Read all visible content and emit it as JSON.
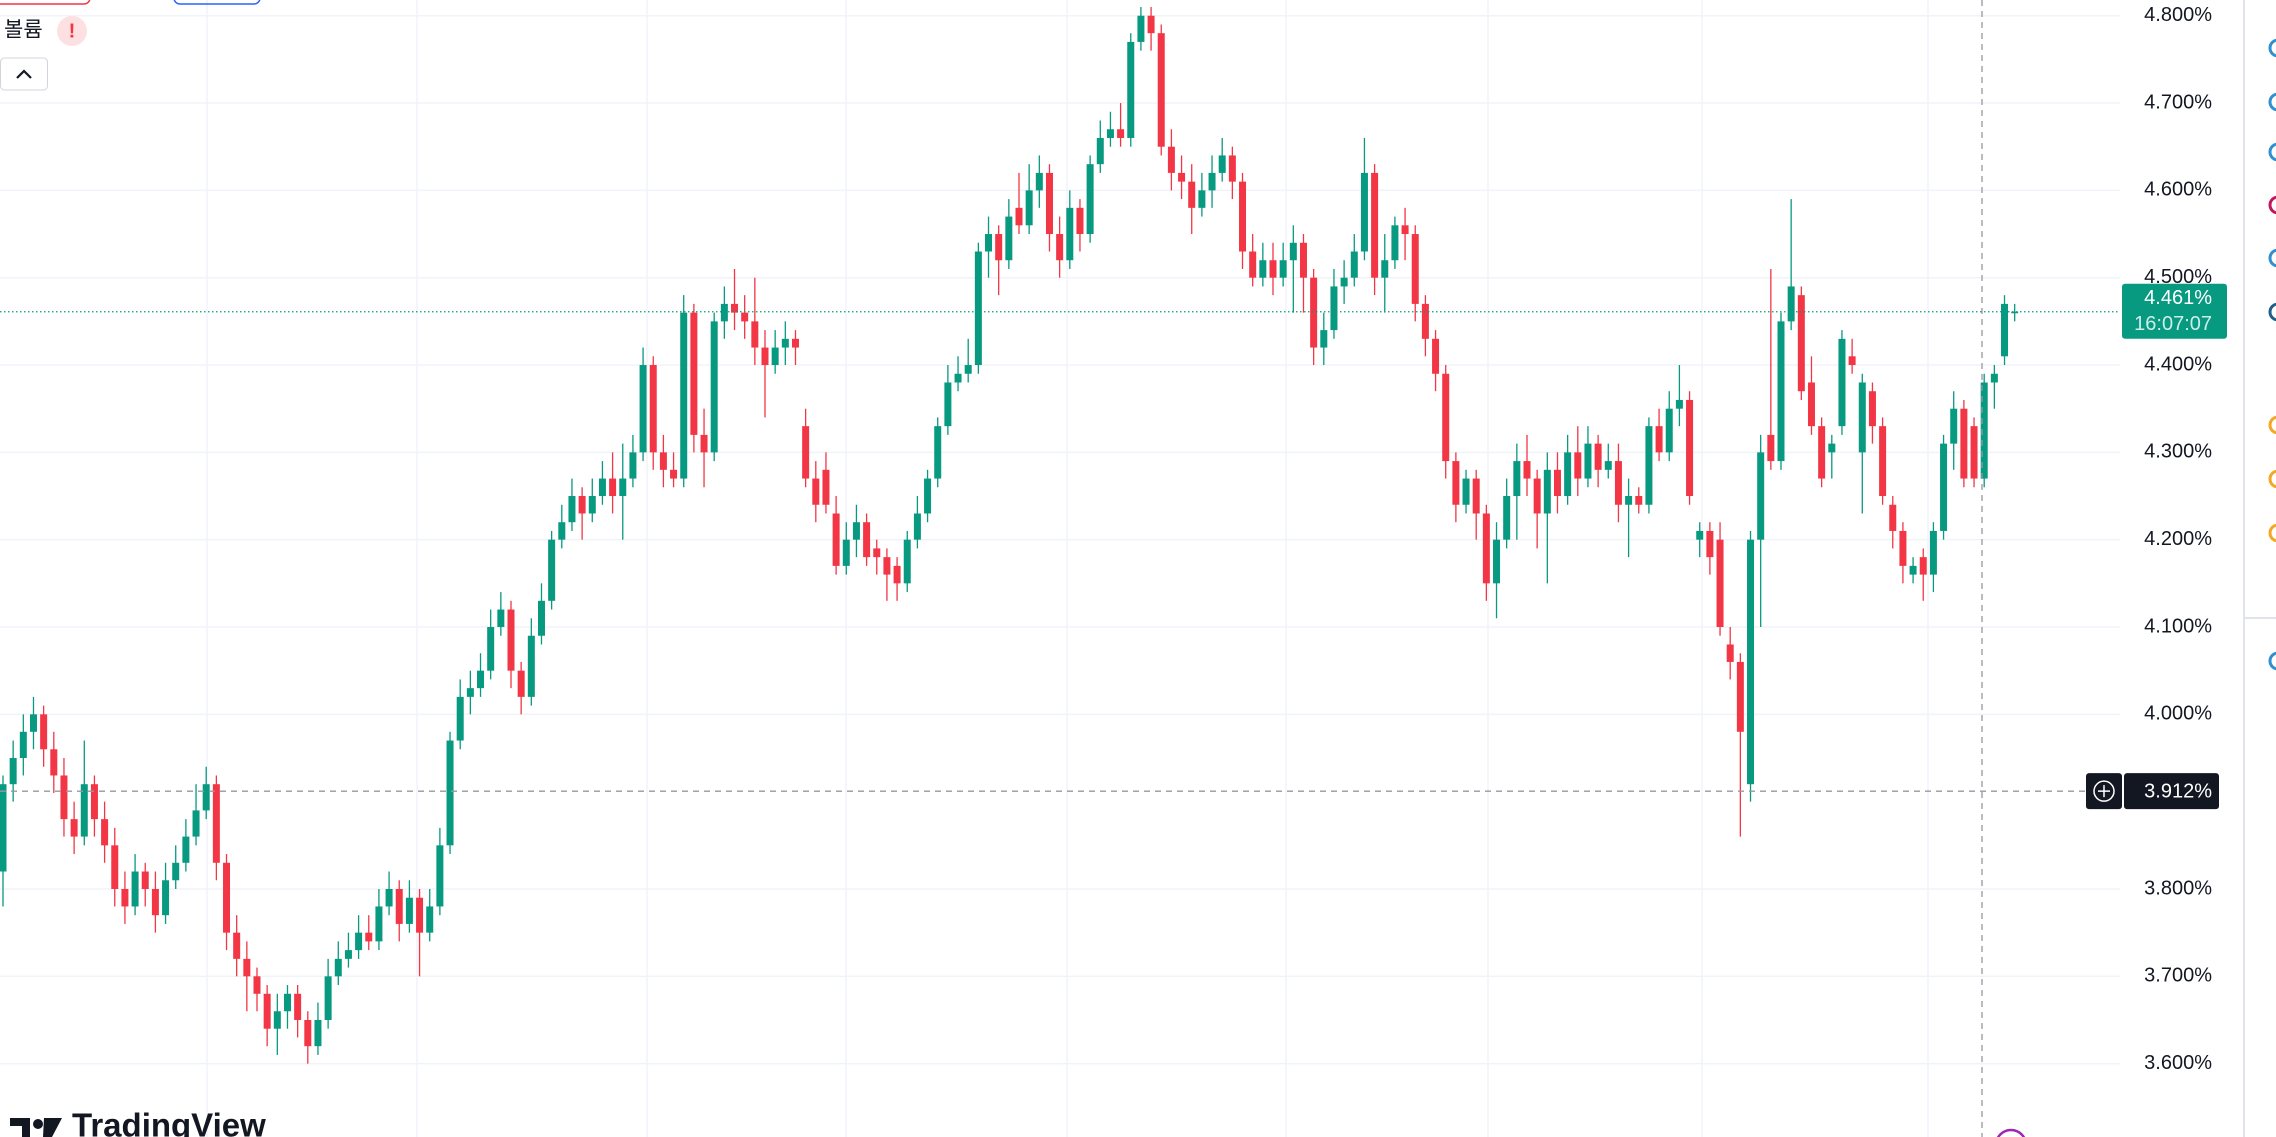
{
  "ui": {
    "volume_label": "볼륨",
    "brand": "TradingView"
  },
  "chart_data": {
    "type": "candlestick",
    "up_color": "#089981",
    "down_color": "#f23645",
    "grid": true,
    "ylim": [
      3.516,
      4.818
    ],
    "yticks": [
      {
        "value": 4.8,
        "label": "4.800%"
      },
      {
        "value": 4.7,
        "label": "4.700%"
      },
      {
        "value": 4.6,
        "label": "4.600%"
      },
      {
        "value": 4.5,
        "label": "4.500%"
      },
      {
        "value": 4.4,
        "label": "4.400%"
      },
      {
        "value": 4.3,
        "label": "4.300%"
      },
      {
        "value": 4.2,
        "label": "4.200%"
      },
      {
        "value": 4.1,
        "label": "4.100%"
      },
      {
        "value": 4.0,
        "label": "4.000%"
      },
      {
        "value": 3.8,
        "label": "3.800%"
      },
      {
        "value": 3.7,
        "label": "3.700%"
      },
      {
        "value": 3.6,
        "label": "3.600%"
      }
    ],
    "last_price": {
      "value": 4.461,
      "label": "4.461%"
    },
    "countdown": "16:07:07",
    "crosshair": {
      "value": 3.912,
      "label": "3.912%"
    },
    "candles": [
      [
        3.82,
        3.93,
        3.78,
        3.92
      ],
      [
        3.92,
        3.97,
        3.9,
        3.95
      ],
      [
        3.95,
        4.0,
        3.93,
        3.98
      ],
      [
        3.98,
        4.02,
        3.96,
        4.0
      ],
      [
        4.0,
        4.01,
        3.94,
        3.96
      ],
      [
        3.96,
        3.98,
        3.91,
        3.93
      ],
      [
        3.93,
        3.95,
        3.86,
        3.88
      ],
      [
        3.88,
        3.9,
        3.84,
        3.86
      ],
      [
        3.86,
        3.97,
        3.85,
        3.92
      ],
      [
        3.92,
        3.93,
        3.86,
        3.88
      ],
      [
        3.88,
        3.9,
        3.83,
        3.85
      ],
      [
        3.85,
        3.87,
        3.78,
        3.8
      ],
      [
        3.8,
        3.82,
        3.76,
        3.78
      ],
      [
        3.78,
        3.84,
        3.77,
        3.82
      ],
      [
        3.82,
        3.83,
        3.78,
        3.8
      ],
      [
        3.8,
        3.82,
        3.75,
        3.77
      ],
      [
        3.77,
        3.83,
        3.76,
        3.81
      ],
      [
        3.81,
        3.85,
        3.8,
        3.83
      ],
      [
        3.83,
        3.88,
        3.82,
        3.86
      ],
      [
        3.86,
        3.92,
        3.85,
        3.89
      ],
      [
        3.89,
        3.94,
        3.88,
        3.92
      ],
      [
        3.92,
        3.93,
        3.81,
        3.83
      ],
      [
        3.83,
        3.84,
        3.73,
        3.75
      ],
      [
        3.75,
        3.77,
        3.7,
        3.72
      ],
      [
        3.72,
        3.74,
        3.66,
        3.7
      ],
      [
        3.7,
        3.71,
        3.66,
        3.68
      ],
      [
        3.68,
        3.69,
        3.62,
        3.64
      ],
      [
        3.64,
        3.68,
        3.61,
        3.66
      ],
      [
        3.66,
        3.69,
        3.64,
        3.68
      ],
      [
        3.68,
        3.69,
        3.63,
        3.65
      ],
      [
        3.65,
        3.66,
        3.6,
        3.62
      ],
      [
        3.62,
        3.67,
        3.61,
        3.65
      ],
      [
        3.65,
        3.72,
        3.64,
        3.7
      ],
      [
        3.7,
        3.74,
        3.69,
        3.72
      ],
      [
        3.72,
        3.75,
        3.71,
        3.73
      ],
      [
        3.73,
        3.77,
        3.72,
        3.75
      ],
      [
        3.75,
        3.77,
        3.73,
        3.74
      ],
      [
        3.74,
        3.8,
        3.73,
        3.78
      ],
      [
        3.78,
        3.82,
        3.77,
        3.8
      ],
      [
        3.8,
        3.81,
        3.74,
        3.76
      ],
      [
        3.76,
        3.81,
        3.75,
        3.79
      ],
      [
        3.79,
        3.8,
        3.7,
        3.75
      ],
      [
        3.75,
        3.8,
        3.74,
        3.78
      ],
      [
        3.78,
        3.87,
        3.77,
        3.85
      ],
      [
        3.85,
        3.98,
        3.84,
        3.97
      ],
      [
        3.97,
        4.04,
        3.96,
        4.02
      ],
      [
        4.02,
        4.05,
        4.0,
        4.03
      ],
      [
        4.03,
        4.07,
        4.02,
        4.05
      ],
      [
        4.05,
        4.12,
        4.04,
        4.1
      ],
      [
        4.1,
        4.14,
        4.09,
        4.12
      ],
      [
        4.12,
        4.13,
        4.03,
        4.05
      ],
      [
        4.05,
        4.06,
        4.0,
        4.02
      ],
      [
        4.02,
        4.11,
        4.01,
        4.09
      ],
      [
        4.09,
        4.15,
        4.08,
        4.13
      ],
      [
        4.13,
        4.21,
        4.12,
        4.2
      ],
      [
        4.2,
        4.24,
        4.19,
        4.22
      ],
      [
        4.22,
        4.27,
        4.21,
        4.25
      ],
      [
        4.25,
        4.26,
        4.2,
        4.23
      ],
      [
        4.23,
        4.27,
        4.22,
        4.25
      ],
      [
        4.25,
        4.29,
        4.24,
        4.27
      ],
      [
        4.27,
        4.3,
        4.23,
        4.25
      ],
      [
        4.25,
        4.31,
        4.2,
        4.27
      ],
      [
        4.27,
        4.32,
        4.26,
        4.3
      ],
      [
        4.3,
        4.42,
        4.29,
        4.4
      ],
      [
        4.4,
        4.41,
        4.28,
        4.3
      ],
      [
        4.3,
        4.32,
        4.26,
        4.28
      ],
      [
        4.28,
        4.3,
        4.26,
        4.27
      ],
      [
        4.27,
        4.48,
        4.26,
        4.46
      ],
      [
        4.46,
        4.47,
        4.3,
        4.32
      ],
      [
        4.32,
        4.35,
        4.26,
        4.3
      ],
      [
        4.3,
        4.46,
        4.29,
        4.45
      ],
      [
        4.45,
        4.49,
        4.43,
        4.47
      ],
      [
        4.47,
        4.51,
        4.44,
        4.46
      ],
      [
        4.46,
        4.48,
        4.43,
        4.45
      ],
      [
        4.45,
        4.5,
        4.4,
        4.42
      ],
      [
        4.42,
        4.44,
        4.34,
        4.4
      ],
      [
        4.4,
        4.44,
        4.39,
        4.42
      ],
      [
        4.42,
        4.45,
        4.4,
        4.43
      ],
      [
        4.43,
        4.44,
        4.4,
        4.42
      ],
      [
        4.33,
        4.35,
        4.26,
        4.27
      ],
      [
        4.27,
        4.29,
        4.22,
        4.24
      ],
      [
        4.28,
        4.3,
        4.23,
        4.24
      ],
      [
        4.23,
        4.25,
        4.16,
        4.17
      ],
      [
        4.17,
        4.22,
        4.16,
        4.2
      ],
      [
        4.2,
        4.24,
        4.18,
        4.22
      ],
      [
        4.22,
        4.23,
        4.17,
        4.18
      ],
      [
        4.19,
        4.2,
        4.16,
        4.18
      ],
      [
        4.18,
        4.19,
        4.13,
        4.16
      ],
      [
        4.17,
        4.18,
        4.13,
        4.15
      ],
      [
        4.15,
        4.21,
        4.14,
        4.2
      ],
      [
        4.2,
        4.25,
        4.19,
        4.23
      ],
      [
        4.23,
        4.28,
        4.22,
        4.27
      ],
      [
        4.27,
        4.34,
        4.26,
        4.33
      ],
      [
        4.33,
        4.4,
        4.32,
        4.38
      ],
      [
        4.38,
        4.41,
        4.37,
        4.39
      ],
      [
        4.39,
        4.43,
        4.38,
        4.4
      ],
      [
        4.4,
        4.54,
        4.39,
        4.53
      ],
      [
        4.53,
        4.57,
        4.5,
        4.55
      ],
      [
        4.55,
        4.56,
        4.48,
        4.52
      ],
      [
        4.52,
        4.59,
        4.51,
        4.57
      ],
      [
        4.58,
        4.62,
        4.55,
        4.56
      ],
      [
        4.56,
        4.63,
        4.55,
        4.6
      ],
      [
        4.6,
        4.64,
        4.58,
        4.62
      ],
      [
        4.62,
        4.63,
        4.53,
        4.55
      ],
      [
        4.55,
        4.57,
        4.5,
        4.52
      ],
      [
        4.52,
        4.6,
        4.51,
        4.58
      ],
      [
        4.58,
        4.59,
        4.53,
        4.55
      ],
      [
        4.55,
        4.64,
        4.54,
        4.63
      ],
      [
        4.63,
        4.68,
        4.62,
        4.66
      ],
      [
        4.66,
        4.69,
        4.65,
        4.67
      ],
      [
        4.67,
        4.7,
        4.65,
        4.66
      ],
      [
        4.66,
        4.78,
        4.65,
        4.77
      ],
      [
        4.77,
        4.81,
        4.76,
        4.8
      ],
      [
        4.8,
        4.81,
        4.76,
        4.78
      ],
      [
        4.78,
        4.79,
        4.64,
        4.65
      ],
      [
        4.65,
        4.67,
        4.6,
        4.62
      ],
      [
        4.62,
        4.64,
        4.59,
        4.61
      ],
      [
        4.61,
        4.63,
        4.55,
        4.58
      ],
      [
        4.58,
        4.62,
        4.57,
        4.6
      ],
      [
        4.6,
        4.64,
        4.58,
        4.62
      ],
      [
        4.62,
        4.66,
        4.61,
        4.64
      ],
      [
        4.64,
        4.65,
        4.59,
        4.61
      ],
      [
        4.61,
        4.62,
        4.51,
        4.53
      ],
      [
        4.53,
        4.55,
        4.49,
        4.5
      ],
      [
        4.5,
        4.54,
        4.49,
        4.52
      ],
      [
        4.52,
        4.54,
        4.48,
        4.5
      ],
      [
        4.5,
        4.54,
        4.49,
        4.52
      ],
      [
        4.52,
        4.56,
        4.46,
        4.54
      ],
      [
        4.54,
        4.55,
        4.46,
        4.5
      ],
      [
        4.5,
        4.51,
        4.4,
        4.42
      ],
      [
        4.42,
        4.46,
        4.4,
        4.44
      ],
      [
        4.44,
        4.51,
        4.43,
        4.49
      ],
      [
        4.49,
        4.52,
        4.47,
        4.5
      ],
      [
        4.5,
        4.55,
        4.49,
        4.53
      ],
      [
        4.53,
        4.66,
        4.52,
        4.62
      ],
      [
        4.62,
        4.63,
        4.48,
        4.5
      ],
      [
        4.5,
        4.55,
        4.46,
        4.52
      ],
      [
        4.52,
        4.57,
        4.51,
        4.56
      ],
      [
        4.56,
        4.58,
        4.52,
        4.55
      ],
      [
        4.55,
        4.56,
        4.45,
        4.47
      ],
      [
        4.47,
        4.48,
        4.41,
        4.43
      ],
      [
        4.43,
        4.44,
        4.37,
        4.39
      ],
      [
        4.39,
        4.4,
        4.27,
        4.29
      ],
      [
        4.29,
        4.3,
        4.22,
        4.24
      ],
      [
        4.24,
        4.28,
        4.23,
        4.27
      ],
      [
        4.27,
        4.28,
        4.2,
        4.23
      ],
      [
        4.23,
        4.24,
        4.13,
        4.15
      ],
      [
        4.15,
        4.22,
        4.11,
        4.2
      ],
      [
        4.2,
        4.27,
        4.19,
        4.25
      ],
      [
        4.25,
        4.31,
        4.2,
        4.29
      ],
      [
        4.29,
        4.32,
        4.25,
        4.27
      ],
      [
        4.27,
        4.28,
        4.19,
        4.23
      ],
      [
        4.23,
        4.3,
        4.15,
        4.28
      ],
      [
        4.28,
        4.3,
        4.23,
        4.25
      ],
      [
        4.25,
        4.32,
        4.24,
        4.3
      ],
      [
        4.3,
        4.33,
        4.25,
        4.27
      ],
      [
        4.27,
        4.33,
        4.26,
        4.31
      ],
      [
        4.31,
        4.32,
        4.26,
        4.28
      ],
      [
        4.28,
        4.31,
        4.27,
        4.29
      ],
      [
        4.29,
        4.31,
        4.22,
        4.24
      ],
      [
        4.24,
        4.27,
        4.18,
        4.25
      ],
      [
        4.25,
        4.26,
        4.23,
        4.24
      ],
      [
        4.24,
        4.34,
        4.23,
        4.33
      ],
      [
        4.33,
        4.35,
        4.29,
        4.3
      ],
      [
        4.3,
        4.37,
        4.29,
        4.35
      ],
      [
        4.35,
        4.4,
        4.33,
        4.36
      ],
      [
        4.36,
        4.37,
        4.24,
        4.25
      ],
      [
        4.2,
        4.22,
        4.18,
        4.21
      ],
      [
        4.21,
        4.22,
        4.16,
        4.18
      ],
      [
        4.2,
        4.22,
        4.09,
        4.1
      ],
      [
        4.08,
        4.1,
        4.04,
        4.06
      ],
      [
        4.06,
        4.07,
        3.86,
        3.98
      ],
      [
        3.92,
        4.21,
        3.9,
        4.2
      ],
      [
        4.2,
        4.32,
        4.1,
        4.3
      ],
      [
        4.32,
        4.51,
        4.28,
        4.29
      ],
      [
        4.29,
        4.46,
        4.28,
        4.45
      ],
      [
        4.45,
        4.59,
        4.44,
        4.49
      ],
      [
        4.48,
        4.49,
        4.36,
        4.37
      ],
      [
        4.38,
        4.41,
        4.32,
        4.33
      ],
      [
        4.33,
        4.34,
        4.26,
        4.27
      ],
      [
        4.3,
        4.32,
        4.27,
        4.31
      ],
      [
        4.33,
        4.44,
        4.32,
        4.43
      ],
      [
        4.41,
        4.43,
        4.39,
        4.4
      ],
      [
        4.3,
        4.39,
        4.23,
        4.38
      ],
      [
        4.37,
        4.38,
        4.31,
        4.33
      ],
      [
        4.33,
        4.34,
        4.24,
        4.25
      ],
      [
        4.24,
        4.25,
        4.19,
        4.21
      ],
      [
        4.21,
        4.22,
        4.15,
        4.17
      ],
      [
        4.16,
        4.18,
        4.15,
        4.17
      ],
      [
        4.18,
        4.19,
        4.13,
        4.16
      ],
      [
        4.16,
        4.22,
        4.14,
        4.21
      ],
      [
        4.21,
        4.32,
        4.2,
        4.31
      ],
      [
        4.31,
        4.37,
        4.28,
        4.35
      ],
      [
        4.35,
        4.36,
        4.26,
        4.27
      ],
      [
        4.33,
        4.34,
        4.26,
        4.27
      ],
      [
        4.27,
        4.39,
        4.26,
        4.38
      ],
      [
        4.38,
        4.4,
        4.35,
        4.39
      ],
      [
        4.41,
        4.48,
        4.4,
        4.47
      ],
      [
        4.46,
        4.47,
        4.45,
        4.461
      ]
    ]
  }
}
